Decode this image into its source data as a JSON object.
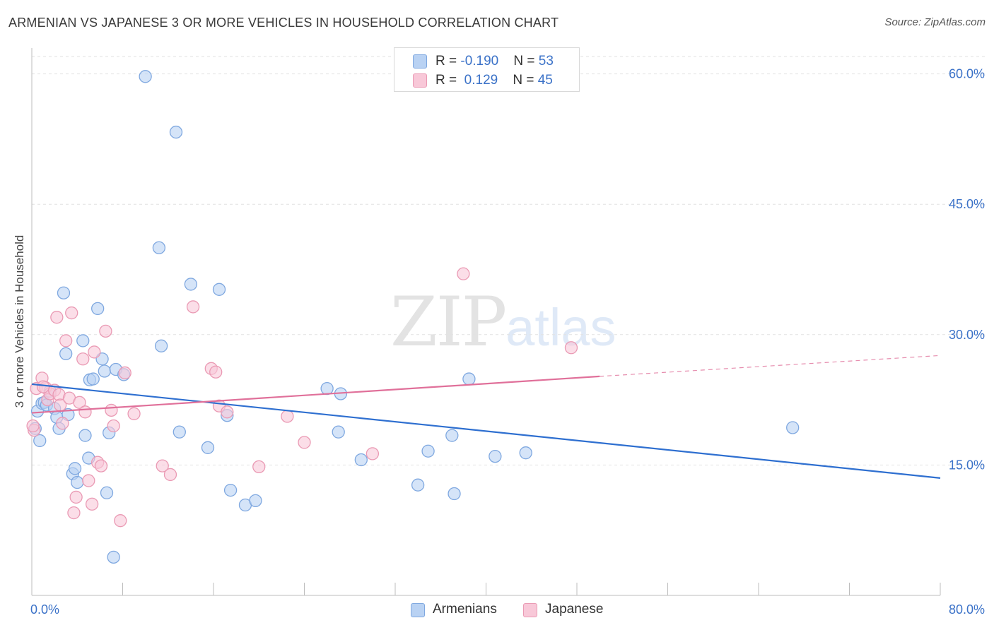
{
  "title": "ARMENIAN VS JAPANESE 3 OR MORE VEHICLES IN HOUSEHOLD CORRELATION CHART",
  "source": "Source: ZipAtlas.com",
  "watermark": {
    "zip": "ZIP",
    "atlas": "atlas"
  },
  "legend": {
    "rows": [
      {
        "r_label": "R = ",
        "r_value": "-0.190",
        "n_label": "N = ",
        "n_value": "53"
      },
      {
        "r_label": "R = ",
        "r_value": " 0.129",
        "n_label": "N = ",
        "n_value": "45"
      }
    ]
  },
  "bottom_legend": {
    "armenians": "Armenians",
    "japanese": "Japanese"
  },
  "colors": {
    "blue_fill": "#b9d2f3",
    "blue_stroke": "#7fa8e0",
    "blue_line": "#2e6fd0",
    "pink_fill": "#f8c8d8",
    "pink_stroke": "#ea9ab4",
    "pink_line": "#e0709a",
    "tick_label": "#3b72c8"
  },
  "chart_data": {
    "type": "scatter",
    "title": "ARMENIAN VS JAPANESE 3 OR MORE VEHICLES IN HOUSEHOLD CORRELATION CHART",
    "xlabel": "",
    "ylabel": "3 or more Vehicles in Household",
    "xlim": [
      0,
      80
    ],
    "ylim": [
      0,
      62
    ],
    "x_tick_labels": [
      "0.0%",
      "80.0%"
    ],
    "y_ticks": [
      15,
      30,
      45,
      60
    ],
    "y_tick_labels": [
      "15.0%",
      "30.0%",
      "45.0%",
      "60.0%"
    ],
    "grid": true,
    "legend_position": "top-center",
    "series": [
      {
        "name": "Armenians",
        "points": [
          [
            0.3,
            19.2
          ],
          [
            0.5,
            21.2
          ],
          [
            0.7,
            17.8
          ],
          [
            0.9,
            22.1
          ],
          [
            1.1,
            22.2
          ],
          [
            1.3,
            21.9
          ],
          [
            1.6,
            23.5
          ],
          [
            2.0,
            21.5
          ],
          [
            2.2,
            20.5
          ],
          [
            2.4,
            19.2
          ],
          [
            2.8,
            34.8
          ],
          [
            3.0,
            27.8
          ],
          [
            3.2,
            20.8
          ],
          [
            3.6,
            14.0
          ],
          [
            3.8,
            14.6
          ],
          [
            4.0,
            13.0
          ],
          [
            4.5,
            29.3
          ],
          [
            4.7,
            18.4
          ],
          [
            5.0,
            15.8
          ],
          [
            5.1,
            24.8
          ],
          [
            5.4,
            24.9
          ],
          [
            5.8,
            33.0
          ],
          [
            6.2,
            27.2
          ],
          [
            6.4,
            25.8
          ],
          [
            6.6,
            11.8
          ],
          [
            6.8,
            18.7
          ],
          [
            7.2,
            4.4
          ],
          [
            7.4,
            26.0
          ],
          [
            8.1,
            25.4
          ],
          [
            10.0,
            59.7
          ],
          [
            11.2,
            40.0
          ],
          [
            11.4,
            28.7
          ],
          [
            12.7,
            53.3
          ],
          [
            13.0,
            18.8
          ],
          [
            14.0,
            35.8
          ],
          [
            15.5,
            17.0
          ],
          [
            16.5,
            35.2
          ],
          [
            17.2,
            20.7
          ],
          [
            17.5,
            12.1
          ],
          [
            18.8,
            10.4
          ],
          [
            19.7,
            10.9
          ],
          [
            26.0,
            23.8
          ],
          [
            27.0,
            18.8
          ],
          [
            27.2,
            23.2
          ],
          [
            29.0,
            15.6
          ],
          [
            34.0,
            12.7
          ],
          [
            34.9,
            16.6
          ],
          [
            37.0,
            18.4
          ],
          [
            37.2,
            11.7
          ],
          [
            38.5,
            24.9
          ],
          [
            40.8,
            16.0
          ],
          [
            43.5,
            16.4
          ],
          [
            67.0,
            19.3
          ]
        ]
      },
      {
        "name": "Japanese",
        "points": [
          [
            0.2,
            19.0
          ],
          [
            0.4,
            23.8
          ],
          [
            0.9,
            25.0
          ],
          [
            1.2,
            23.9
          ],
          [
            1.4,
            22.5
          ],
          [
            1.6,
            23.2
          ],
          [
            2.0,
            23.6
          ],
          [
            2.2,
            32.0
          ],
          [
            2.4,
            23.1
          ],
          [
            2.5,
            21.9
          ],
          [
            2.7,
            19.8
          ],
          [
            3.0,
            29.3
          ],
          [
            3.3,
            22.7
          ],
          [
            3.5,
            32.5
          ],
          [
            3.9,
            11.3
          ],
          [
            3.7,
            9.5
          ],
          [
            4.2,
            22.2
          ],
          [
            4.5,
            27.2
          ],
          [
            4.7,
            21.1
          ],
          [
            5.0,
            13.2
          ],
          [
            5.3,
            10.5
          ],
          [
            5.5,
            28.0
          ],
          [
            5.8,
            15.3
          ],
          [
            6.1,
            14.9
          ],
          [
            6.5,
            30.4
          ],
          [
            7.0,
            21.3
          ],
          [
            7.2,
            19.5
          ],
          [
            7.8,
            8.6
          ],
          [
            8.2,
            25.6
          ],
          [
            9.0,
            20.9
          ],
          [
            11.5,
            14.9
          ],
          [
            12.2,
            13.9
          ],
          [
            14.2,
            33.2
          ],
          [
            15.8,
            26.1
          ],
          [
            16.2,
            25.7
          ],
          [
            16.5,
            21.8
          ],
          [
            17.2,
            21.1
          ],
          [
            20.0,
            14.8
          ],
          [
            22.5,
            20.6
          ],
          [
            24.0,
            17.6
          ],
          [
            30.0,
            16.3
          ],
          [
            38.0,
            37.0
          ],
          [
            47.5,
            28.5
          ],
          [
            1.0,
            24.0
          ],
          [
            0.1,
            19.5
          ]
        ]
      }
    ],
    "trend_lines": [
      {
        "series": "Armenians",
        "x": [
          0,
          80
        ],
        "y": [
          24.3,
          13.5
        ],
        "style": "solid"
      },
      {
        "series": "Japanese",
        "x": [
          0,
          50
        ],
        "y": [
          21.0,
          25.2
        ],
        "style": "solid",
        "dashed_extension_to_x": 80,
        "dashed_extension_y": 27.6
      }
    ]
  }
}
